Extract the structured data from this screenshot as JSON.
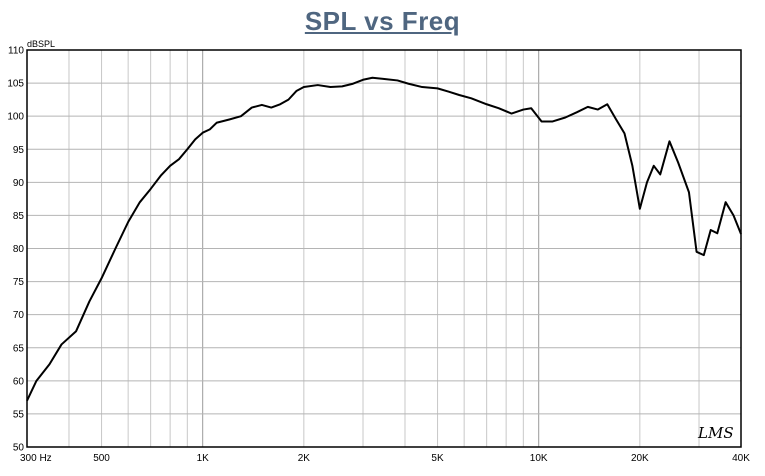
{
  "chart_data": {
    "type": "line",
    "title": "SPL vs Freq",
    "ylabel": "dBSPL",
    "xlabel": "",
    "xscale": "log",
    "xlim": [
      300,
      40000
    ],
    "ylim": [
      50,
      110
    ],
    "grid": true,
    "y_ticks": [
      50,
      55,
      60,
      65,
      70,
      75,
      80,
      85,
      90,
      95,
      100,
      105,
      110
    ],
    "x_tick_labels": [
      {
        "value": 300,
        "label": "300 Hz"
      },
      {
        "value": 500,
        "label": "500"
      },
      {
        "value": 1000,
        "label": "1K"
      },
      {
        "value": 2000,
        "label": "2K"
      },
      {
        "value": 5000,
        "label": "5K"
      },
      {
        "value": 10000,
        "label": "10K"
      },
      {
        "value": 20000,
        "label": "20K"
      },
      {
        "value": 40000,
        "label": "40K"
      }
    ],
    "watermark": "LMS",
    "series": [
      {
        "color": "#000000",
        "x": [
          300,
          320,
          350,
          380,
          420,
          460,
          500,
          550,
          600,
          650,
          700,
          750,
          800,
          850,
          900,
          950,
          1000,
          1050,
          1100,
          1200,
          1300,
          1400,
          1500,
          1600,
          1700,
          1800,
          1900,
          2000,
          2200,
          2400,
          2600,
          2800,
          3000,
          3200,
          3500,
          3800,
          4100,
          4500,
          5000,
          5400,
          5800,
          6300,
          7000,
          7600,
          8300,
          9000,
          9500,
          10200,
          11000,
          12000,
          13000,
          14000,
          15000,
          16000,
          17000,
          18000,
          19000,
          20000,
          21000,
          22000,
          23000,
          24500,
          26000,
          28000,
          29500,
          31000,
          32500,
          34000,
          36000,
          38000,
          40000
        ],
        "y": [
          57,
          60,
          62.5,
          65.5,
          67.5,
          72,
          75.5,
          80,
          84,
          87,
          89,
          91,
          92.5,
          93.5,
          95,
          96.5,
          97.5,
          98,
          99,
          99.5,
          100,
          101.3,
          101.7,
          101.3,
          101.8,
          102.5,
          103.8,
          104.4,
          104.7,
          104.4,
          104.5,
          104.9,
          105.5,
          105.8,
          105.6,
          105.4,
          104.9,
          104.4,
          104.2,
          103.7,
          103.2,
          102.7,
          101.8,
          101.2,
          100.4,
          101,
          101.2,
          99.2,
          99.2,
          99.8,
          100.6,
          101.4,
          101.0,
          101.8,
          99.5,
          97.4,
          92.5,
          86,
          90,
          92.5,
          91.2,
          96.2,
          93,
          88.5,
          79.5,
          79,
          82.8,
          82.3,
          87,
          85,
          82.2
        ]
      }
    ]
  }
}
